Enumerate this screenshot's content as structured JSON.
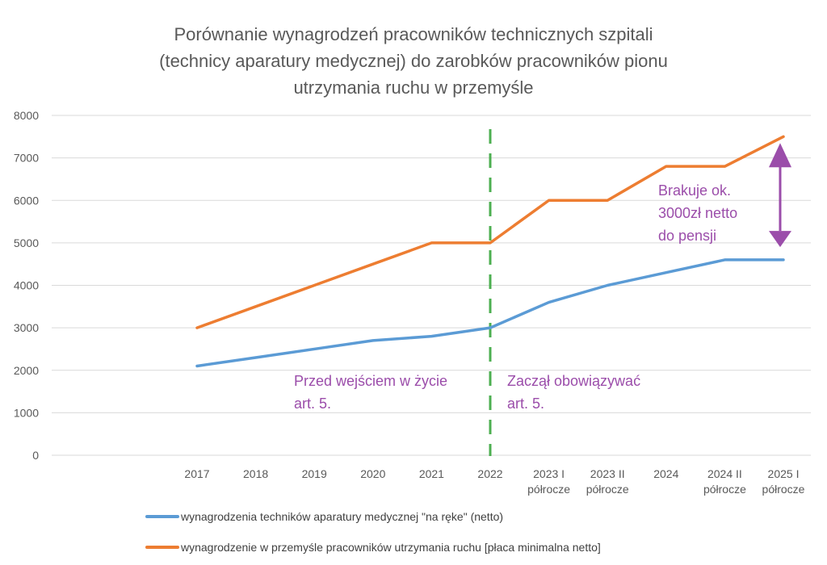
{
  "chart_data": {
    "type": "line",
    "title_lines": [
      "Porównanie wynagrodzeń pracowników technicznych szpitali",
      "(technicy aparatury medycznej) do zarobków pracowników pionu",
      "utrzymania ruchu w przemyśle"
    ],
    "categories": [
      [
        "2017"
      ],
      [
        "2018"
      ],
      [
        "2019"
      ],
      [
        "2020"
      ],
      [
        "2021"
      ],
      [
        "2022"
      ],
      [
        "2023 I",
        "półrocze"
      ],
      [
        "2023 II",
        "półrocze"
      ],
      [
        "2024"
      ],
      [
        "2024  II",
        "półrocze"
      ],
      [
        "2025 I",
        "półrocze"
      ]
    ],
    "ylim": [
      0,
      8000
    ],
    "yticks": [
      0,
      1000,
      2000,
      3000,
      4000,
      5000,
      6000,
      7000,
      8000
    ],
    "grid": true,
    "series": [
      {
        "name": "wynagrodzenia techników aparatury medycznej \"na ręke\" (netto)",
        "color": "#5B9BD5",
        "values": [
          2100,
          2300,
          2500,
          2700,
          2800,
          3000,
          3600,
          4000,
          4300,
          4600,
          4600
        ]
      },
      {
        "name": "wynagrodzenie w przemyśle pracowników utrzymania ruchu [płaca minimalna netto]",
        "color": "#ED7D31",
        "values": [
          3000,
          3500,
          4000,
          4500,
          5000,
          5000,
          6000,
          6000,
          6800,
          6800,
          7500
        ]
      }
    ],
    "vertical_marker": {
      "category": "2022",
      "color": "#4CAF50",
      "style": "dashed"
    },
    "annotations": {
      "before": [
        "Przed wejściem w życie",
        "art. 5."
      ],
      "after": [
        "Zaczął obowiązywać",
        "art. 5."
      ],
      "gap": [
        "Brakuje ok.",
        "3000zł netto",
        "do pensji"
      ],
      "gap_arrow": {
        "from": 4900,
        "to": 7350,
        "color": "#9B4DAA"
      }
    },
    "legend_position": "bottom"
  }
}
